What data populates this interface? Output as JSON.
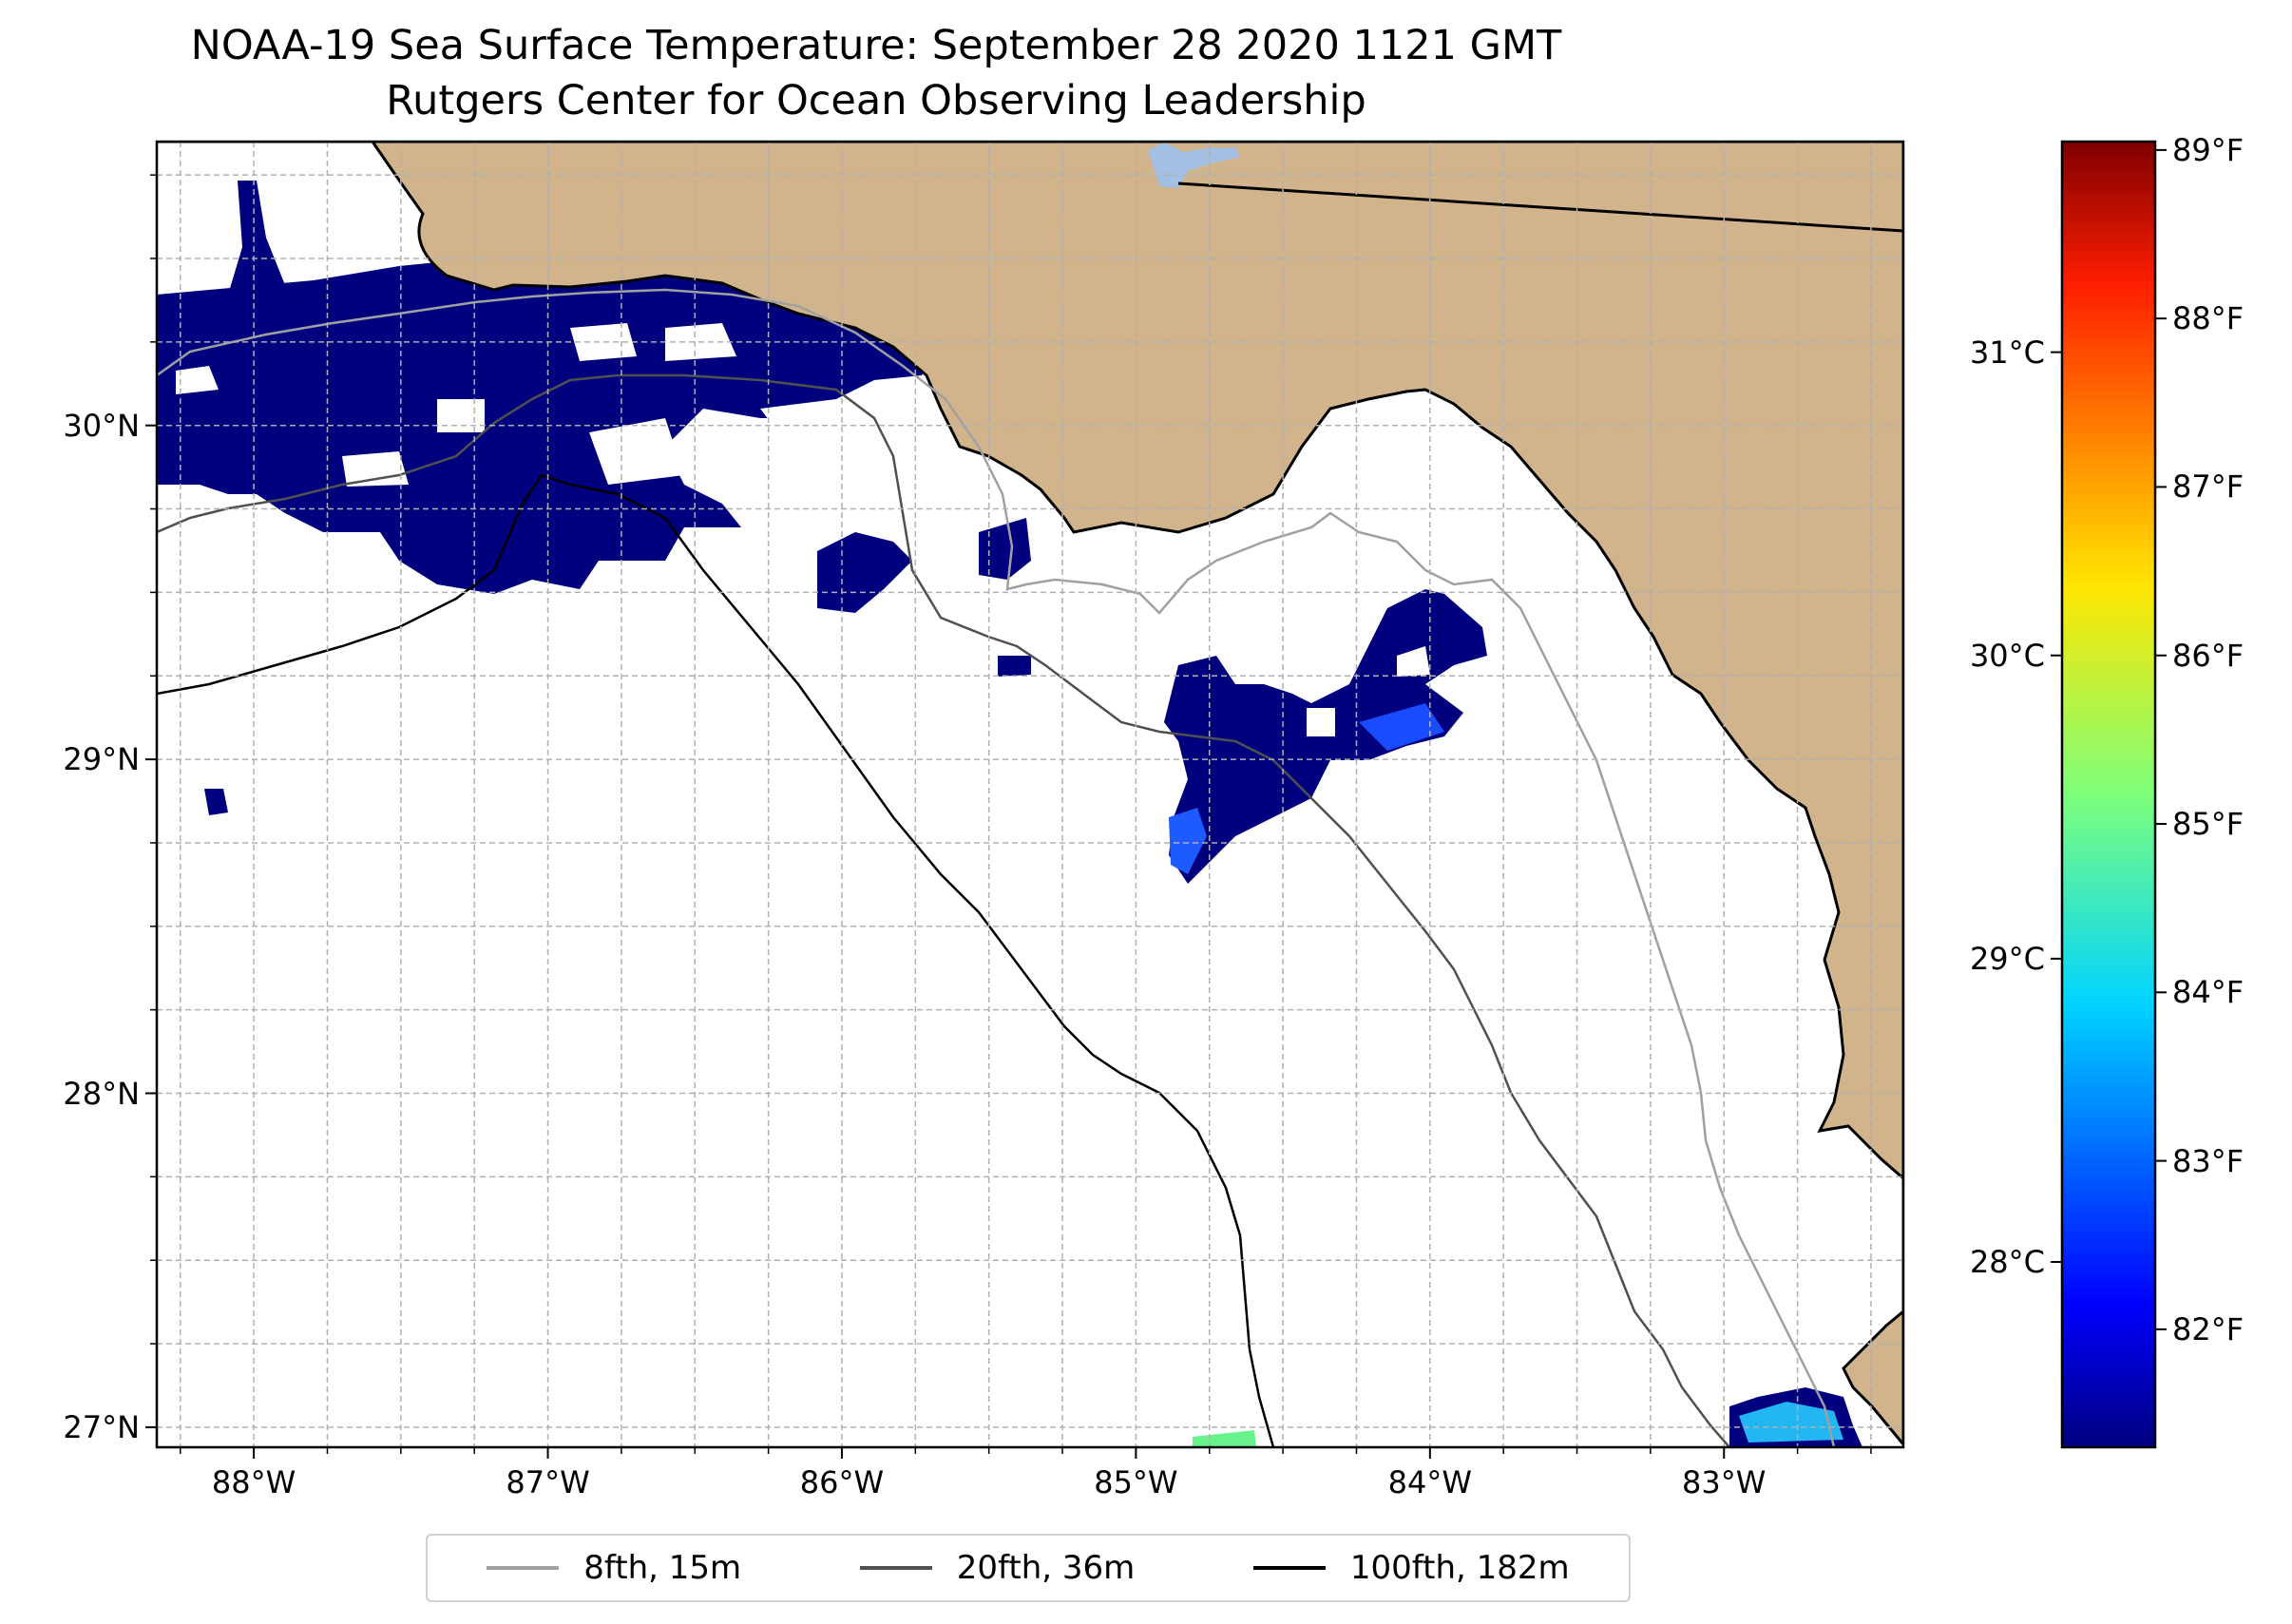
{
  "title": "NOAA-19 Sea Surface Temperature: September 28 2020 1121 GMT",
  "subtitle": "Rutgers Center for Ocean Observing Leadership",
  "map": {
    "extent": {
      "lon_min": -88.33,
      "lon_max": -82.39,
      "lat_min": 26.94,
      "lat_max": 30.85
    },
    "lon_ticks": [
      {
        "value": -88,
        "label": "88°W"
      },
      {
        "value": -87,
        "label": "87°W"
      },
      {
        "value": -86,
        "label": "86°W"
      },
      {
        "value": -85,
        "label": "85°W"
      },
      {
        "value": -84,
        "label": "84°W"
      },
      {
        "value": -83,
        "label": "83°W"
      }
    ],
    "lat_ticks": [
      {
        "value": 27,
        "label": "27°N"
      },
      {
        "value": 28,
        "label": "28°N"
      },
      {
        "value": 29,
        "label": "29°N"
      },
      {
        "value": 30,
        "label": "30°N"
      }
    ],
    "grid": true,
    "land_color": "#d2b48c",
    "water_body_color": "#a3bfe4",
    "sst_fill_color": "#00007f"
  },
  "colorbar": {
    "colormap": "jet",
    "fahrenheit_ticks": [
      {
        "value": 82,
        "label": "82°F"
      },
      {
        "value": 83,
        "label": "83°F"
      },
      {
        "value": 84,
        "label": "84°F"
      },
      {
        "value": 85,
        "label": "85°F"
      },
      {
        "value": 86,
        "label": "86°F"
      },
      {
        "value": 87,
        "label": "87°F"
      },
      {
        "value": 88,
        "label": "88°F"
      },
      {
        "value": 89,
        "label": "89°F"
      }
    ],
    "celsius_ticks": [
      {
        "value": 28,
        "label": "28°C"
      },
      {
        "value": 29,
        "label": "29°C"
      },
      {
        "value": 30,
        "label": "30°C"
      },
      {
        "value": 31,
        "label": "31°C"
      }
    ],
    "range_f": [
      81.3,
      89.05
    ]
  },
  "legend": {
    "items": [
      {
        "label": "8fth, 15m",
        "color": "#a0a0a0"
      },
      {
        "label": "20fth, 36m",
        "color": "#505050"
      },
      {
        "label": "100fth, 182m",
        "color": "#000000"
      }
    ]
  }
}
